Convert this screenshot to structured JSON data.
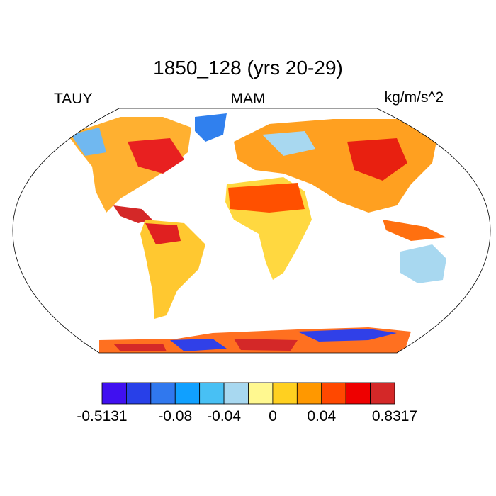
{
  "title": "1850_128 (yrs 20-29)",
  "left_string": "TAUY",
  "center_string": "MAM",
  "right_string": "kg/m/s^2",
  "colorbar": {
    "colors": [
      "#4010f0",
      "#2840e8",
      "#3078ee",
      "#10a0ff",
      "#48c0f4",
      "#a8d8f0",
      "#fff890",
      "#ffd020",
      "#ff9800",
      "#ff4800",
      "#ee0000",
      "#d42828"
    ],
    "labels": [
      {
        "text": "-0.5131",
        "boundary": 0
      },
      {
        "text": "-0.08",
        "boundary": 3
      },
      {
        "text": "-0.04",
        "boundary": 5
      },
      {
        "text": "0",
        "boundary": 7
      },
      {
        "text": "0.04",
        "boundary": 9
      },
      {
        "text": "0.8317",
        "boundary": 12
      }
    ]
  }
}
